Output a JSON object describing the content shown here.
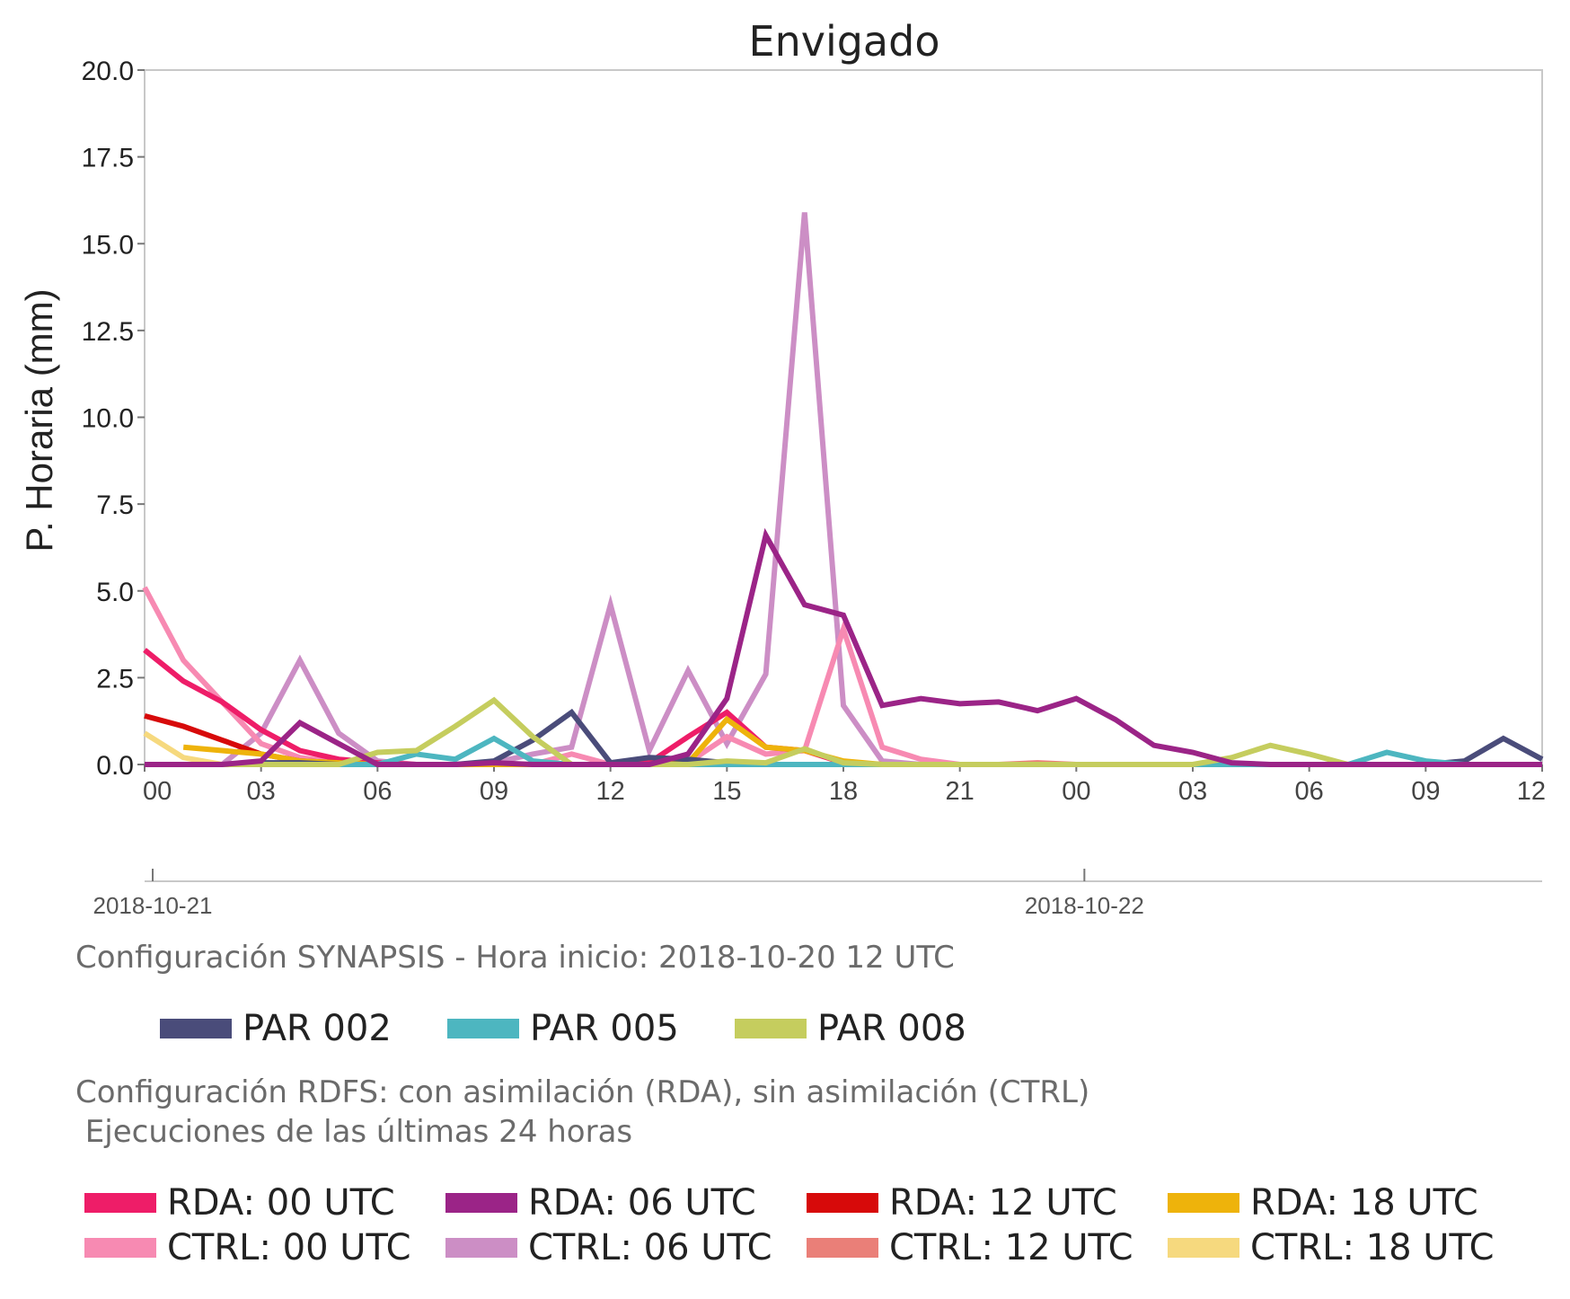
{
  "chart_data": {
    "type": "line",
    "title": "Envigado",
    "ylabel": "P. Horaria (mm)",
    "xlabel": "",
    "ylim": [
      0,
      20
    ],
    "yticks": [
      "0.0",
      "2.5",
      "5.0",
      "7.5",
      "10.0",
      "12.5",
      "15.0",
      "17.5",
      "20.0"
    ],
    "x_hours_range": [
      0,
      36
    ],
    "xticks": [
      "00",
      "03",
      "06",
      "09",
      "12",
      "15",
      "18",
      "21",
      "00",
      "03",
      "06",
      "09",
      "12"
    ],
    "dates": [
      "2018-10-21",
      "2018-10-22"
    ],
    "grid": false,
    "series": [
      {
        "name": "CTRL: 06 UTC",
        "color": "#cc8ec5",
        "x": [
          0,
          1,
          2,
          3,
          4,
          5,
          6,
          7,
          8,
          9,
          10,
          11,
          12,
          13,
          14,
          15,
          16,
          17,
          18,
          19,
          20,
          21,
          22,
          23,
          24
        ],
        "values": [
          0,
          0,
          0,
          0.9,
          3.0,
          0.9,
          0.1,
          0,
          0,
          0.05,
          0.3,
          0.5,
          4.6,
          0.4,
          2.7,
          0.6,
          2.6,
          15.9,
          1.7,
          0.1,
          0,
          0,
          0,
          0,
          0
        ]
      },
      {
        "name": "CTRL: 00 UTC",
        "color": "#f78ab2",
        "x": [
          0,
          1,
          2,
          3,
          4,
          5,
          6,
          7,
          8,
          9,
          10,
          11,
          12,
          13,
          14,
          15,
          16,
          17,
          18,
          19,
          20,
          21,
          22,
          23,
          24
        ],
        "values": [
          5.1,
          3.0,
          1.8,
          0.6,
          0.2,
          0.05,
          0,
          0,
          0,
          0,
          0,
          0.3,
          0,
          0,
          0.05,
          0.8,
          0.3,
          0.4,
          3.9,
          0.5,
          0.15,
          0,
          0,
          0,
          0
        ]
      },
      {
        "name": "CTRL: 12 UTC",
        "color": "#ea7f78",
        "x": [
          12,
          13,
          14,
          15,
          16,
          17,
          18,
          19,
          20,
          21,
          22,
          23,
          24,
          25,
          26,
          27,
          28,
          29,
          30,
          31,
          32,
          33,
          34,
          35,
          36
        ],
        "values": [
          0,
          0,
          0,
          0,
          0,
          0,
          0,
          0,
          0,
          0,
          0,
          0.05,
          0,
          0,
          0,
          0,
          0,
          0,
          0,
          0,
          0,
          0,
          0,
          0,
          0
        ]
      },
      {
        "name": "CTRL: 18 UTC",
        "color": "#f6d97e",
        "x": [
          0,
          1,
          2,
          3,
          4,
          5,
          6
        ],
        "values": [
          0.9,
          0.2,
          0,
          0,
          0,
          0,
          0
        ]
      },
      {
        "name": "RDA: 00 UTC",
        "color": "#ee1d68",
        "x": [
          0,
          1,
          2,
          3,
          4,
          5,
          6,
          7,
          8,
          9,
          10,
          11,
          12,
          13,
          14,
          15,
          16,
          17,
          18,
          19,
          20,
          21,
          22,
          23,
          24
        ],
        "values": [
          3.3,
          2.4,
          1.8,
          1.0,
          0.4,
          0.15,
          0.05,
          0,
          0,
          0,
          0,
          0,
          0,
          0.05,
          0.8,
          1.5,
          0.5,
          0.4,
          0.05,
          0,
          0,
          0,
          0,
          0,
          0
        ]
      },
      {
        "name": "RDA: 12 UTC",
        "color": "#d70a0a",
        "x": [
          0,
          1,
          2,
          3,
          4,
          5,
          6
        ],
        "values": [
          1.4,
          1.1,
          0.7,
          0.3,
          0.1,
          0.05,
          0
        ]
      },
      {
        "name": "RDA: 18 UTC",
        "color": "#eeb30b",
        "x": [
          1,
          2,
          3,
          4,
          5,
          6,
          7,
          8,
          9,
          10,
          11,
          12,
          13,
          14,
          15,
          16,
          17,
          18,
          19,
          20
        ],
        "values": [
          0.5,
          0.4,
          0.3,
          0.1,
          0.05,
          0,
          0,
          0,
          0,
          0,
          0,
          0,
          0,
          0.05,
          1.3,
          0.5,
          0.4,
          0.1,
          0,
          0
        ]
      },
      {
        "name": "PAR 002",
        "color": "#4a4c7a",
        "x": [
          0,
          1,
          2,
          3,
          4,
          5,
          6,
          7,
          8,
          9,
          10,
          11,
          12,
          13,
          14,
          15,
          16,
          17,
          18,
          19,
          20,
          21,
          22,
          23,
          24,
          25,
          26,
          27,
          28,
          29,
          30,
          31,
          32,
          33,
          34,
          35,
          36
        ],
        "values": [
          0,
          0,
          0,
          0.05,
          0.05,
          0,
          0,
          0,
          0,
          0.1,
          0.7,
          1.5,
          0.05,
          0.2,
          0.15,
          0.05,
          0,
          0,
          0,
          0,
          0,
          0,
          0,
          0,
          0,
          0,
          0,
          0,
          0,
          0,
          0,
          0,
          0,
          0,
          0.1,
          0.75,
          0.15
        ]
      },
      {
        "name": "PAR 005",
        "color": "#4db6c0",
        "x": [
          0,
          1,
          2,
          3,
          4,
          5,
          6,
          7,
          8,
          9,
          10,
          11,
          12,
          13,
          14,
          15,
          16,
          17,
          18,
          19,
          20,
          21,
          22,
          23,
          24,
          25,
          26,
          27,
          28,
          29,
          30,
          31,
          32,
          33,
          34,
          35,
          36
        ],
        "values": [
          0,
          0,
          0,
          0,
          0,
          0,
          0,
          0.3,
          0.15,
          0.75,
          0.1,
          0,
          0,
          0,
          0,
          0,
          0,
          0,
          0,
          0,
          0,
          0,
          0,
          0,
          0,
          0,
          0,
          0,
          0,
          0,
          0,
          0,
          0.35,
          0.1,
          0,
          0,
          0
        ]
      },
      {
        "name": "PAR 008",
        "color": "#c5cd5e",
        "x": [
          0,
          1,
          2,
          3,
          4,
          5,
          6,
          7,
          8,
          9,
          10,
          11,
          12,
          13,
          14,
          15,
          16,
          17,
          18,
          19,
          20,
          21,
          22,
          23,
          24,
          25,
          26,
          27,
          28,
          29,
          30,
          31,
          32,
          33,
          34,
          35,
          36
        ],
        "values": [
          0,
          0,
          0,
          0,
          0,
          0,
          0.35,
          0.4,
          1.1,
          1.85,
          0.8,
          0,
          0,
          0,
          0,
          0.1,
          0.05,
          0.45,
          0.05,
          0,
          0,
          0,
          0,
          0,
          0,
          0,
          0,
          0,
          0.2,
          0.55,
          0.3,
          0,
          0,
          0,
          0,
          0,
          0
        ]
      },
      {
        "name": "RDA: 06 UTC",
        "color": "#9b2487",
        "x": [
          0,
          1,
          2,
          3,
          4,
          5,
          6,
          7,
          8,
          9,
          10,
          11,
          12,
          13,
          14,
          15,
          16,
          17,
          18,
          19,
          20,
          21,
          22,
          23,
          24,
          25,
          26,
          27,
          28,
          29,
          30,
          31,
          32,
          33,
          34,
          35,
          36
        ],
        "values": [
          0,
          0,
          0,
          0.1,
          1.2,
          0.6,
          0,
          0,
          0,
          0.05,
          0,
          0,
          0,
          0,
          0.3,
          1.9,
          6.6,
          4.6,
          4.3,
          1.7,
          1.9,
          1.75,
          1.8,
          1.55,
          1.9,
          1.3,
          0.55,
          0.35,
          0.05,
          0,
          0,
          0,
          0,
          0,
          0,
          0,
          0
        ]
      }
    ]
  },
  "captions": {
    "synapsis": "Configuración SYNAPSIS - Hora inicio: 2018-10-20 12 UTC",
    "rdfs_line1": "Configuración RDFS: con asimilación (RDA), sin asimilación (CTRL)",
    "rdfs_line2": " Ejecuciones de las últimas 24 horas"
  },
  "legend_par": [
    {
      "label": "PAR 002",
      "color": "#4a4c7a"
    },
    {
      "label": "PAR 005",
      "color": "#4db6c0"
    },
    {
      "label": "PAR 008",
      "color": "#c5cd5e"
    }
  ],
  "legend_rdfs": [
    {
      "label": "RDA: 00 UTC",
      "color": "#ee1d68"
    },
    {
      "label": "RDA: 06 UTC",
      "color": "#9b2487"
    },
    {
      "label": "RDA: 12 UTC",
      "color": "#d70a0a"
    },
    {
      "label": "RDA: 18 UTC",
      "color": "#eeb30b"
    },
    {
      "label": "CTRL: 00 UTC",
      "color": "#f78ab2"
    },
    {
      "label": "CTRL: 06 UTC",
      "color": "#cc8ec5"
    },
    {
      "label": "CTRL: 12 UTC",
      "color": "#ea7f78"
    },
    {
      "label": "CTRL: 18 UTC",
      "color": "#f6d97e"
    }
  ]
}
